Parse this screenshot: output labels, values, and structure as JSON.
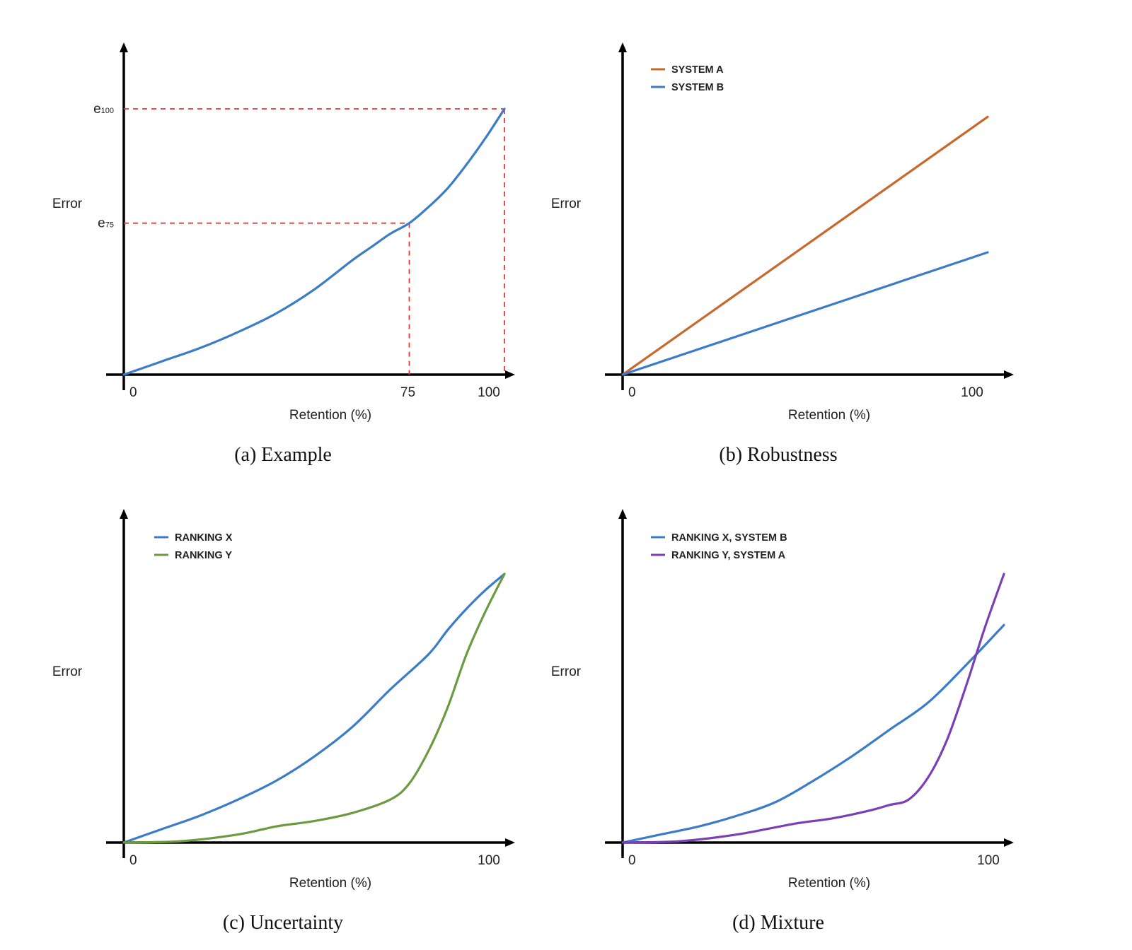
{
  "chart_data": [
    {
      "type": "line",
      "caption": "(a)  Example",
      "xlabel": "Retention (%)",
      "ylabel": "Error",
      "x_ticks": [
        {
          "value": 0,
          "label": "0"
        },
        {
          "value": 75,
          "label": "75"
        },
        {
          "value": 100,
          "label": "100"
        }
      ],
      "y_ticks": [
        {
          "value": 0.57,
          "base": "e",
          "sub": "75"
        },
        {
          "value": 1.0,
          "base": "e",
          "sub": "100"
        }
      ],
      "guides": [
        {
          "x": 75,
          "y": 0.57
        },
        {
          "x": 100,
          "y": 1.0
        }
      ],
      "legend": [],
      "series": [
        {
          "color": "#3a7cc7",
          "x": [
            0,
            10,
            20,
            30,
            40,
            50,
            60,
            65,
            70,
            75,
            80,
            85,
            90,
            95,
            100
          ],
          "y": [
            0,
            0.05,
            0.1,
            0.16,
            0.23,
            0.32,
            0.43,
            0.48,
            0.53,
            0.57,
            0.63,
            0.7,
            0.79,
            0.89,
            1.0
          ]
        }
      ]
    },
    {
      "type": "line",
      "caption": "(b)  Robustness",
      "xlabel": "Retention (%)",
      "ylabel": "Error",
      "x_ticks": [
        {
          "value": 0,
          "label": "0"
        },
        {
          "value": 100,
          "label": "100"
        }
      ],
      "y_ticks": [],
      "guides": [],
      "legend": [
        {
          "label": "SYSTEM A",
          "color": "#c9682c"
        },
        {
          "label": "SYSTEM B",
          "color": "#3a7cc7"
        }
      ],
      "series": [
        {
          "name": "SYSTEM A",
          "color": "#c9682c",
          "x": [
            0,
            100
          ],
          "y": [
            0,
            0.97
          ]
        },
        {
          "name": "SYSTEM B",
          "color": "#3a7cc7",
          "x": [
            0,
            100
          ],
          "y": [
            0,
            0.46
          ]
        }
      ]
    },
    {
      "type": "line",
      "caption": "(c)  Uncertainty",
      "xlabel": "Retention (%)",
      "ylabel": "Error",
      "x_ticks": [
        {
          "value": 0,
          "label": "0"
        },
        {
          "value": 100,
          "label": "100"
        }
      ],
      "y_ticks": [],
      "guides": [],
      "legend": [
        {
          "label": "RANKING X",
          "color": "#3a7cc7"
        },
        {
          "label": "RANKING Y",
          "color": "#6b9a3f"
        }
      ],
      "series": [
        {
          "name": "RANKING X",
          "color": "#3a7cc7",
          "x": [
            0,
            10,
            20,
            30,
            40,
            50,
            60,
            70,
            80,
            85,
            90,
            95,
            100
          ],
          "y": [
            0,
            0.05,
            0.1,
            0.16,
            0.23,
            0.32,
            0.43,
            0.57,
            0.7,
            0.79,
            0.87,
            0.94,
            1.0
          ]
        },
        {
          "name": "RANKING Y",
          "color": "#6b9a3f",
          "x": [
            0,
            15,
            30,
            40,
            50,
            60,
            70,
            75,
            80,
            85,
            90,
            95,
            100
          ],
          "y": [
            0,
            0.005,
            0.03,
            0.06,
            0.08,
            0.11,
            0.16,
            0.22,
            0.34,
            0.5,
            0.7,
            0.86,
            1.0
          ]
        }
      ]
    },
    {
      "type": "line",
      "caption": "(d)  Mixture",
      "xlabel": "Retention (%)",
      "ylabel": "Error",
      "x_ticks": [
        {
          "value": 0,
          "label": "0"
        },
        {
          "value": 100,
          "label": "100"
        }
      ],
      "y_ticks": [],
      "guides": [],
      "legend": [
        {
          "label": "RANKING X, SYSTEM B",
          "color": "#3a7cc7"
        },
        {
          "label": "RANKING Y, SYSTEM A",
          "color": "#7b3fb5"
        }
      ],
      "series": [
        {
          "name": "RANKING X, SYSTEM B",
          "color": "#3a7cc7",
          "x": [
            0,
            10,
            20,
            30,
            40,
            50,
            60,
            70,
            80,
            90,
            100
          ],
          "y": [
            0,
            0.03,
            0.06,
            0.1,
            0.15,
            0.23,
            0.32,
            0.42,
            0.52,
            0.66,
            0.81
          ]
        },
        {
          "name": "RANKING Y, SYSTEM A",
          "color": "#7b3fb5",
          "x": [
            0,
            15,
            30,
            45,
            55,
            65,
            70,
            75,
            80,
            85,
            90,
            95,
            100
          ],
          "y": [
            0,
            0.005,
            0.03,
            0.07,
            0.09,
            0.12,
            0.14,
            0.16,
            0.24,
            0.38,
            0.58,
            0.8,
            1.0
          ]
        }
      ]
    }
  ]
}
